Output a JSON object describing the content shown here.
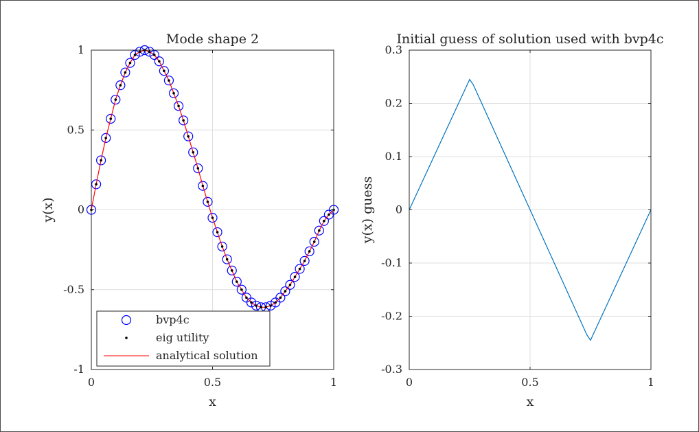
{
  "chart_data": [
    {
      "type": "line",
      "title": "Mode shape 2",
      "xlabel": "x",
      "ylabel": "y(x)",
      "xlim": [
        0,
        1
      ],
      "ylim": [
        -1,
        1
      ],
      "xticks": [
        "0",
        "0.5",
        "1"
      ],
      "yticks": [
        "-1",
        "-0.5",
        "0",
        "0.5",
        "1"
      ],
      "grid": true,
      "legend_location": "bottom-left",
      "x": [
        0,
        0.02,
        0.04,
        0.06,
        0.08,
        0.1,
        0.12,
        0.14,
        0.16,
        0.18,
        0.2,
        0.22,
        0.24,
        0.26,
        0.28,
        0.3,
        0.32,
        0.34,
        0.36,
        0.38,
        0.4,
        0.42,
        0.44,
        0.46,
        0.48,
        0.5,
        0.52,
        0.54,
        0.56,
        0.58,
        0.6,
        0.62,
        0.64,
        0.66,
        0.68,
        0.7,
        0.72,
        0.74,
        0.76,
        0.78,
        0.8,
        0.82,
        0.84,
        0.86,
        0.88,
        0.9,
        0.92,
        0.94,
        0.96,
        0.98,
        1.0
      ],
      "series": [
        {
          "name": "bvp4c",
          "style": "circle-marker",
          "color": "#0000ff",
          "values": [
            0,
            0.16,
            0.31,
            0.45,
            0.57,
            0.69,
            0.78,
            0.86,
            0.92,
            0.97,
            0.99,
            1.0,
            0.99,
            0.97,
            0.93,
            0.87,
            0.81,
            0.73,
            0.65,
            0.56,
            0.46,
            0.36,
            0.26,
            0.15,
            0.05,
            -0.05,
            -0.14,
            -0.23,
            -0.31,
            -0.38,
            -0.45,
            -0.5,
            -0.55,
            -0.58,
            -0.6,
            -0.61,
            -0.61,
            -0.6,
            -0.58,
            -0.55,
            -0.51,
            -0.47,
            -0.42,
            -0.37,
            -0.32,
            -0.26,
            -0.2,
            -0.13,
            -0.07,
            -0.03,
            0
          ]
        },
        {
          "name": "eig utility",
          "style": "dot-marker",
          "color": "#000000",
          "values": [
            0,
            0.16,
            0.31,
            0.45,
            0.57,
            0.69,
            0.78,
            0.86,
            0.92,
            0.97,
            0.99,
            1.0,
            0.99,
            0.97,
            0.93,
            0.87,
            0.81,
            0.73,
            0.65,
            0.56,
            0.46,
            0.36,
            0.26,
            0.15,
            0.05,
            -0.05,
            -0.14,
            -0.23,
            -0.31,
            -0.38,
            -0.45,
            -0.5,
            -0.55,
            -0.58,
            -0.6,
            -0.61,
            -0.61,
            -0.6,
            -0.58,
            -0.55,
            -0.51,
            -0.47,
            -0.42,
            -0.37,
            -0.32,
            -0.26,
            -0.2,
            -0.13,
            -0.07,
            -0.03,
            0
          ]
        },
        {
          "name": "analytical solution",
          "style": "line",
          "color": "#ff0000",
          "values": [
            0,
            0.16,
            0.31,
            0.45,
            0.57,
            0.69,
            0.78,
            0.86,
            0.92,
            0.97,
            0.99,
            1.0,
            0.99,
            0.97,
            0.93,
            0.87,
            0.81,
            0.73,
            0.65,
            0.56,
            0.46,
            0.36,
            0.26,
            0.15,
            0.05,
            -0.05,
            -0.14,
            -0.23,
            -0.31,
            -0.38,
            -0.45,
            -0.5,
            -0.55,
            -0.58,
            -0.6,
            -0.61,
            -0.61,
            -0.6,
            -0.58,
            -0.55,
            -0.51,
            -0.47,
            -0.42,
            -0.37,
            -0.32,
            -0.26,
            -0.2,
            -0.13,
            -0.07,
            -0.03,
            0
          ]
        }
      ]
    },
    {
      "type": "line",
      "title": "Initial guess of solution used with bvp4c",
      "xlabel": "x",
      "ylabel": "y(x) guess",
      "xlim": [
        0,
        1
      ],
      "ylim": [
        -0.3,
        0.3
      ],
      "xticks": [
        "0",
        "0.5",
        "1"
      ],
      "yticks": [
        "-0.3",
        "-0.2",
        "-0.1",
        "0",
        "0.1",
        "0.2",
        "0.3"
      ],
      "grid": true,
      "x": [
        0,
        0.25,
        0.265,
        0.735,
        0.75,
        1.0
      ],
      "series": [
        {
          "color": "#0072bd",
          "values": [
            0,
            0.245,
            0.235,
            -0.235,
            -0.245,
            0
          ]
        }
      ]
    }
  ]
}
